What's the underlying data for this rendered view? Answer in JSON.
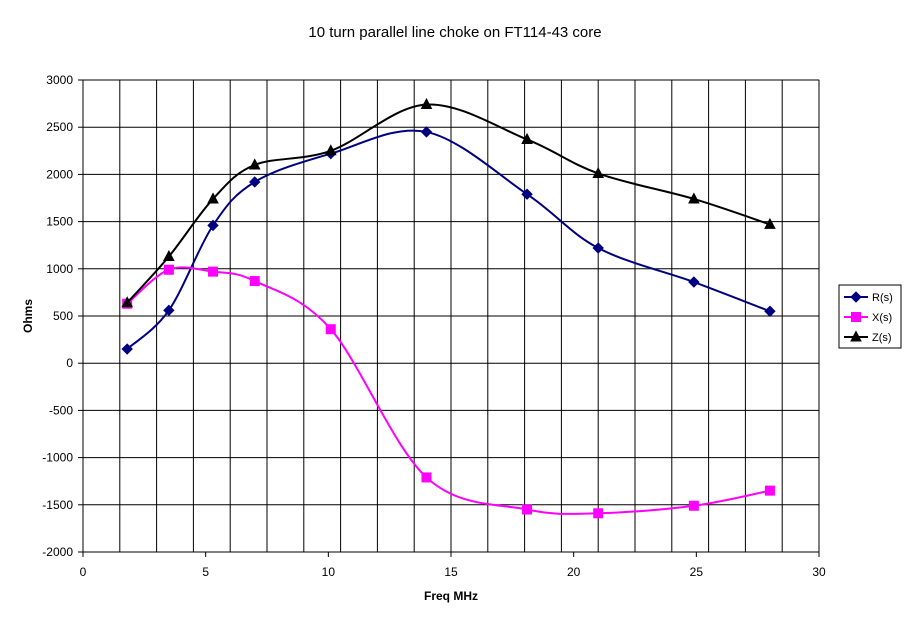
{
  "chart_data": {
    "type": "line",
    "title": "10 turn parallel line choke on FT114-43 core",
    "xlabel": "Freq MHz",
    "ylabel": "Ohms",
    "xlim": [
      0,
      30
    ],
    "ylim": [
      -2000,
      3000
    ],
    "x_ticks": [
      0,
      5,
      10,
      15,
      20,
      25,
      30
    ],
    "y_ticks": [
      -2000,
      -1500,
      -1000,
      -500,
      0,
      500,
      1000,
      1500,
      2000,
      2500,
      3000
    ],
    "x_gridlines": [
      0,
      1.5,
      3,
      4.5,
      6,
      7.5,
      9,
      10.5,
      12,
      13.5,
      15,
      16.5,
      18,
      19.5,
      21,
      22.5,
      24,
      25.5,
      27,
      28.5,
      30
    ],
    "grid": true,
    "smoothed": true,
    "legend_position": "right",
    "x": [
      1.8,
      3.5,
      5.3,
      7.0,
      10.1,
      14.0,
      18.1,
      21.0,
      24.9,
      28.0
    ],
    "series": [
      {
        "name": "R(s)",
        "color": "#000080",
        "marker": "diamond",
        "values": [
          150,
          560,
          1460,
          1920,
          2220,
          2450,
          1790,
          1220,
          860,
          550
        ]
      },
      {
        "name": "X(s)",
        "color": "#ff00ff",
        "marker": "square",
        "values": [
          630,
          990,
          970,
          870,
          360,
          -1210,
          -1550,
          -1590,
          -1510,
          -1350
        ]
      },
      {
        "name": "Z(s)",
        "color": "#000000",
        "marker": "triangle",
        "values": [
          640,
          1130,
          1740,
          2100,
          2250,
          2740,
          2370,
          2010,
          1740,
          1470
        ]
      }
    ]
  }
}
